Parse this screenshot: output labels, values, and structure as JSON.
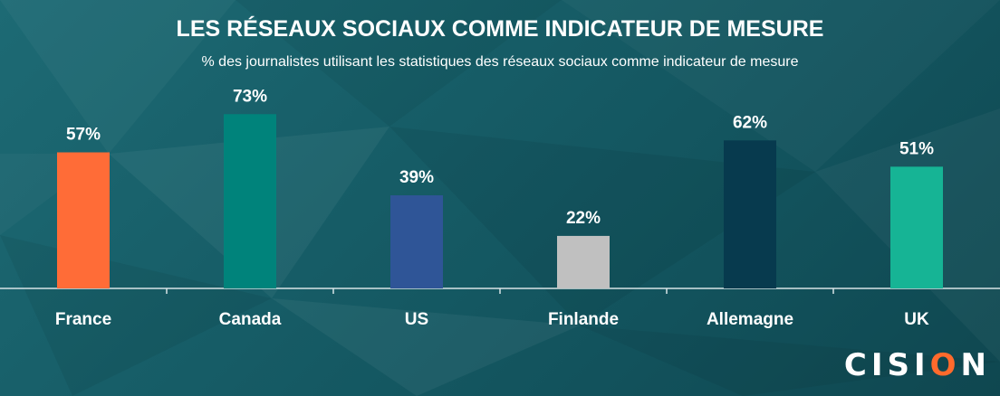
{
  "header": {
    "title": "LES RÉSEAUX SOCIAUX COMME INDICATEUR DE MESURE",
    "subtitle": "% des journalistes utilisant les statistiques des réseaux sociaux comme indicateur de mesure"
  },
  "logo": {
    "text_left": "CISI",
    "text_o": "O",
    "text_right": "N"
  },
  "chart_data": {
    "type": "bar",
    "title": "LES RÉSEAUX SOCIAUX COMME INDICATEUR DE MESURE",
    "subtitle": "% des journalistes utilisant les statistiques des réseaux sociaux comme indicateur de mesure",
    "xlabel": "",
    "ylabel": "",
    "ylim": [
      0,
      100
    ],
    "grid": false,
    "legend": "none",
    "value_suffix": "%",
    "categories": [
      "France",
      "Canada",
      "US",
      "Finlande",
      "Allemagne",
      "UK"
    ],
    "values": [
      57,
      73,
      39,
      22,
      62,
      51
    ],
    "bar_colors": [
      "#ff6c37",
      "#00837b",
      "#2f5597",
      "#c0c0c0",
      "#073a4e",
      "#16b495"
    ]
  },
  "colors": {
    "axis": "#d8e4e6",
    "label_text": "#ffffff"
  }
}
